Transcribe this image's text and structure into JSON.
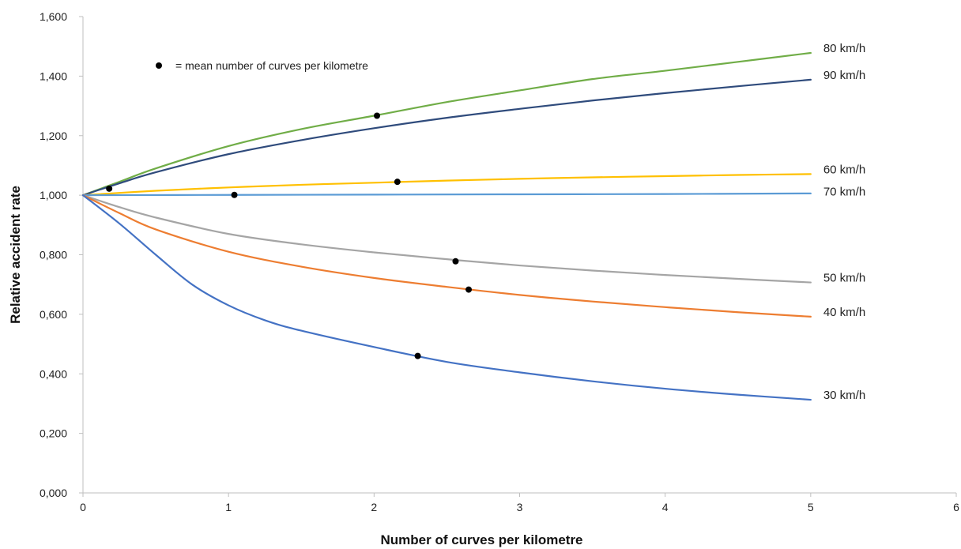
{
  "chart_data": {
    "type": "line",
    "title": "",
    "xlabel": "Number of curves per kilometre",
    "ylabel": "Relative accident rate",
    "xlim": [
      0,
      6
    ],
    "ylim": [
      0,
      1.6
    ],
    "x_ticks": [
      0,
      1,
      2,
      3,
      4,
      5,
      6
    ],
    "x_tick_labels": [
      "0",
      "1",
      "2",
      "3",
      "4",
      "5",
      "6"
    ],
    "y_ticks": [
      0,
      0.2,
      0.4,
      0.6,
      0.8,
      1.0,
      1.2,
      1.4,
      1.6
    ],
    "y_tick_labels": [
      "0,000",
      "0,200",
      "0,400",
      "0,600",
      "0,800",
      "1,000",
      "1,200",
      "1,400",
      "1,600"
    ],
    "grid": false,
    "legend_text": "= mean number of curves per kilometre",
    "legend_placement": "top-left",
    "series": [
      {
        "name": "80 km/h",
        "color": "#70ad47",
        "x": [
          0,
          0.25,
          0.5,
          1,
          1.5,
          2,
          2.5,
          3,
          3.5,
          4,
          4.5,
          5
        ],
        "y": [
          1.0,
          1.045,
          1.09,
          1.165,
          1.222,
          1.267,
          1.313,
          1.352,
          1.39,
          1.418,
          1.448,
          1.478
        ],
        "mean_point": {
          "x": 2.02,
          "y": 1.267
        }
      },
      {
        "name": "90 km/h",
        "color": "#2f4b7c",
        "x": [
          0,
          0.25,
          0.5,
          1,
          1.5,
          2,
          2.5,
          3,
          3.5,
          4,
          4.5,
          5
        ],
        "y": [
          1.0,
          1.04,
          1.077,
          1.138,
          1.185,
          1.225,
          1.26,
          1.29,
          1.318,
          1.343,
          1.366,
          1.388
        ],
        "mean_point": {
          "x": 0.18,
          "y": 1.022
        }
      },
      {
        "name": "60 km/h",
        "color": "#ffc000",
        "x": [
          0,
          0.5,
          1,
          1.5,
          2,
          2.5,
          3,
          3.5,
          4,
          4.5,
          5
        ],
        "y": [
          1.0,
          1.015,
          1.026,
          1.035,
          1.042,
          1.049,
          1.055,
          1.06,
          1.064,
          1.068,
          1.071
        ],
        "mean_point": {
          "x": 2.16,
          "y": 1.045
        }
      },
      {
        "name": "70 km/h",
        "color": "#5b9bd5",
        "x": [
          0,
          1,
          2,
          3,
          4,
          5
        ],
        "y": [
          1.0,
          1.001,
          1.002,
          1.003,
          1.004,
          1.006
        ],
        "mean_point": {
          "x": 1.04,
          "y": 1.001
        }
      },
      {
        "name": "50 km/h",
        "color": "#a5a5a5",
        "x": [
          0,
          0.25,
          0.5,
          1,
          1.5,
          2,
          2.5,
          3,
          3.5,
          4,
          4.5,
          5
        ],
        "y": [
          1.0,
          0.96,
          0.925,
          0.87,
          0.835,
          0.808,
          0.785,
          0.764,
          0.747,
          0.732,
          0.719,
          0.707
        ],
        "mean_point": {
          "x": 2.56,
          "y": 0.778
        }
      },
      {
        "name": "40 km/h",
        "color": "#ed7d31",
        "x": [
          0,
          0.25,
          0.5,
          1,
          1.5,
          2,
          2.5,
          3,
          3.5,
          4,
          4.5,
          5
        ],
        "y": [
          1.0,
          0.94,
          0.885,
          0.81,
          0.76,
          0.722,
          0.692,
          0.665,
          0.643,
          0.624,
          0.607,
          0.592
        ],
        "mean_point": {
          "x": 2.65,
          "y": 0.683
        }
      },
      {
        "name": "30 km/h",
        "color": "#4472c4",
        "x": [
          0,
          0.25,
          0.5,
          0.75,
          1,
          1.25,
          1.5,
          2,
          2.5,
          3,
          3.5,
          4,
          4.5,
          5
        ],
        "y": [
          1.0,
          0.905,
          0.8,
          0.7,
          0.63,
          0.58,
          0.545,
          0.49,
          0.44,
          0.405,
          0.375,
          0.35,
          0.33,
          0.313
        ],
        "mean_point": {
          "x": 2.3,
          "y": 0.46
        }
      }
    ]
  }
}
